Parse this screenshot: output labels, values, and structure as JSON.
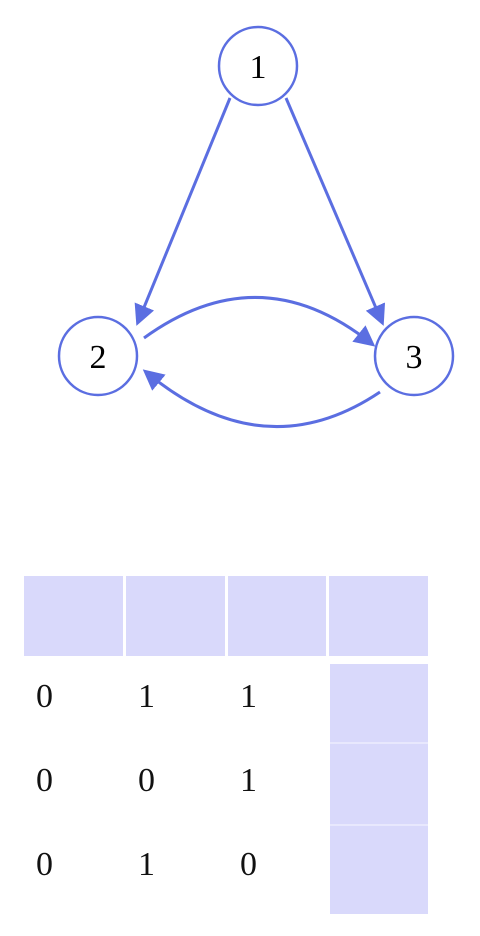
{
  "graph": {
    "nodes": [
      {
        "id": "1",
        "label": "1"
      },
      {
        "id": "2",
        "label": "2"
      },
      {
        "id": "3",
        "label": "3"
      }
    ],
    "edges": [
      {
        "from": "1",
        "to": "2"
      },
      {
        "from": "1",
        "to": "3"
      },
      {
        "from": "2",
        "to": "3"
      },
      {
        "from": "3",
        "to": "2"
      }
    ],
    "colors": {
      "node_stroke": "#5b6ee1",
      "edge": "#5b6ee1",
      "panel": "#d9d9fb"
    }
  },
  "matrix": {
    "rows": [
      [
        "0",
        "1",
        "1"
      ],
      [
        "0",
        "0",
        "1"
      ],
      [
        "0",
        "1",
        "0"
      ]
    ]
  }
}
